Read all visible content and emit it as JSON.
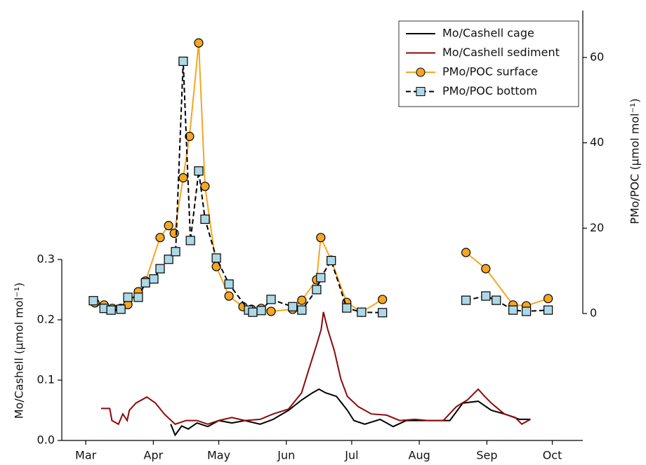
{
  "chart_data": {
    "type": "line",
    "xlabel_left": "Mo/Cashell (μmol mol⁻¹)",
    "ylabel": "Mo/Cashell (μmol mol⁻¹)",
    "y2label": "PMo/POC (μmol mol⁻¹)",
    "xlim": [
      49,
      288
    ],
    "xticks": [
      {
        "value": 60,
        "label": "Mar"
      },
      {
        "value": 91,
        "label": "Apr"
      },
      {
        "value": 121,
        "label": "May"
      },
      {
        "value": 152,
        "label": "Jun"
      },
      {
        "value": 182,
        "label": "Jul"
      },
      {
        "value": 213,
        "label": "Aug"
      },
      {
        "value": 244,
        "label": "Sep"
      },
      {
        "value": 274,
        "label": "Oct"
      }
    ],
    "ylim": [
      0,
      0.3
    ],
    "yticks": [
      {
        "value": 0,
        "label": "0.0"
      },
      0.1,
      0.2,
      0.3
    ],
    "y2lim": [
      0,
      71
    ],
    "y2ticks": [
      0,
      20,
      40,
      60
    ],
    "legend": "upper right",
    "series": [
      {
        "name": "Mo/Cashell cage",
        "color": "#000000",
        "linestyle": "solid",
        "marker": "none",
        "x": [
          99,
          101,
          104,
          107,
          111,
          116,
          121,
          127,
          133,
          140,
          146,
          153,
          159,
          164,
          167,
          170,
          175,
          180,
          183,
          188,
          195,
          201,
          207,
          214,
          220,
          227,
          233,
          240,
          246,
          252,
          259,
          264
        ],
        "values": [
          0.027,
          0.009,
          0.024,
          0.019,
          0.029,
          0.023,
          0.033,
          0.029,
          0.033,
          0.027,
          0.035,
          0.05,
          0.067,
          0.079,
          0.085,
          0.079,
          0.073,
          0.05,
          0.033,
          0.027,
          0.035,
          0.023,
          0.033,
          0.033,
          0.033,
          0.033,
          0.062,
          0.065,
          0.05,
          0.044,
          0.035,
          0.035
        ]
      },
      {
        "name": "Mo/Cashell sediment",
        "color": "#8b0a0a",
        "linestyle": "solid",
        "marker": "none",
        "x": [
          67,
          71,
          72,
          75,
          77,
          79,
          80,
          83,
          88,
          92,
          96,
          101,
          106,
          111,
          116,
          121,
          127,
          133,
          140,
          146,
          153,
          159,
          162,
          166,
          168,
          169,
          171,
          174,
          177,
          180,
          185,
          191,
          198,
          204,
          211,
          217,
          224,
          230,
          235,
          240,
          243,
          246,
          252,
          257,
          260,
          264
        ],
        "values": [
          0.053,
          0.053,
          0.033,
          0.027,
          0.044,
          0.033,
          0.05,
          0.062,
          0.072,
          0.062,
          0.044,
          0.027,
          0.033,
          0.033,
          0.027,
          0.033,
          0.038,
          0.033,
          0.035,
          0.044,
          0.052,
          0.079,
          0.114,
          0.16,
          0.184,
          0.213,
          0.184,
          0.149,
          0.102,
          0.073,
          0.056,
          0.044,
          0.042,
          0.033,
          0.035,
          0.033,
          0.033,
          0.056,
          0.067,
          0.085,
          0.073,
          0.062,
          0.044,
          0.038,
          0.027,
          0.035
        ]
      },
      {
        "name": "PMo/POC surface",
        "color": "#f5a623",
        "linestyle": "solid",
        "marker": "circle",
        "axis": "y2",
        "x": [
          64.2,
          68.4,
          72.2,
          76.1,
          79.3,
          84.1,
          87.4,
          94.1,
          98.0,
          100.6,
          104.7,
          107.6,
          111.8,
          114.7,
          119.9,
          125.7,
          132.1,
          136.0,
          140.5,
          145.0,
          154.9,
          159.1,
          165.9,
          167.8,
          172.6,
          179.7,
          186.5,
          196.1,
          null,
          234.4,
          243.5,
          256.0,
          262.1,
          272.1
        ],
        "values": [
          2.5,
          2.0,
          1.2,
          1.2,
          2.1,
          5.1,
          7.6,
          17.8,
          20.6,
          18.8,
          31.8,
          41.5,
          63.4,
          29.8,
          11.0,
          4.1,
          1.6,
          1.0,
          1.2,
          0.5,
          1.0,
          3.1,
          7.9,
          17.8,
          12.5,
          2.6,
          0.3,
          3.3,
          null,
          14.3,
          10.5,
          2.0,
          1.8,
          3.5
        ]
      },
      {
        "name": "PMo/POC bottom",
        "color": "#000000",
        "marker_color": "#add8e6",
        "linestyle": "dashed",
        "marker": "square",
        "axis": "y2",
        "x": [
          63.5,
          68.4,
          71.6,
          76.1,
          79.3,
          84.1,
          87.4,
          91.2,
          94.1,
          98.0,
          101.2,
          104.7,
          108.0,
          111.8,
          114.7,
          119.9,
          125.7,
          134.7,
          136.6,
          140.5,
          145.0,
          154.9,
          159.1,
          165.9,
          167.8,
          172.6,
          179.7,
          186.5,
          196.1,
          null,
          234.4,
          243.5,
          248.3,
          256.0,
          262.1,
          272.1
        ],
        "values": [
          3.0,
          1.2,
          0.8,
          1.0,
          3.8,
          3.8,
          7.2,
          8.1,
          10.5,
          12.7,
          14.5,
          59.1,
          17.1,
          33.4,
          22.1,
          13.0,
          6.9,
          0.8,
          0.3,
          0.7,
          3.3,
          1.6,
          0.8,
          5.6,
          8.4,
          12.4,
          1.3,
          0.3,
          0.2,
          null,
          3.1,
          4.1,
          3.1,
          0.8,
          0.5,
          0.8
        ]
      }
    ]
  }
}
